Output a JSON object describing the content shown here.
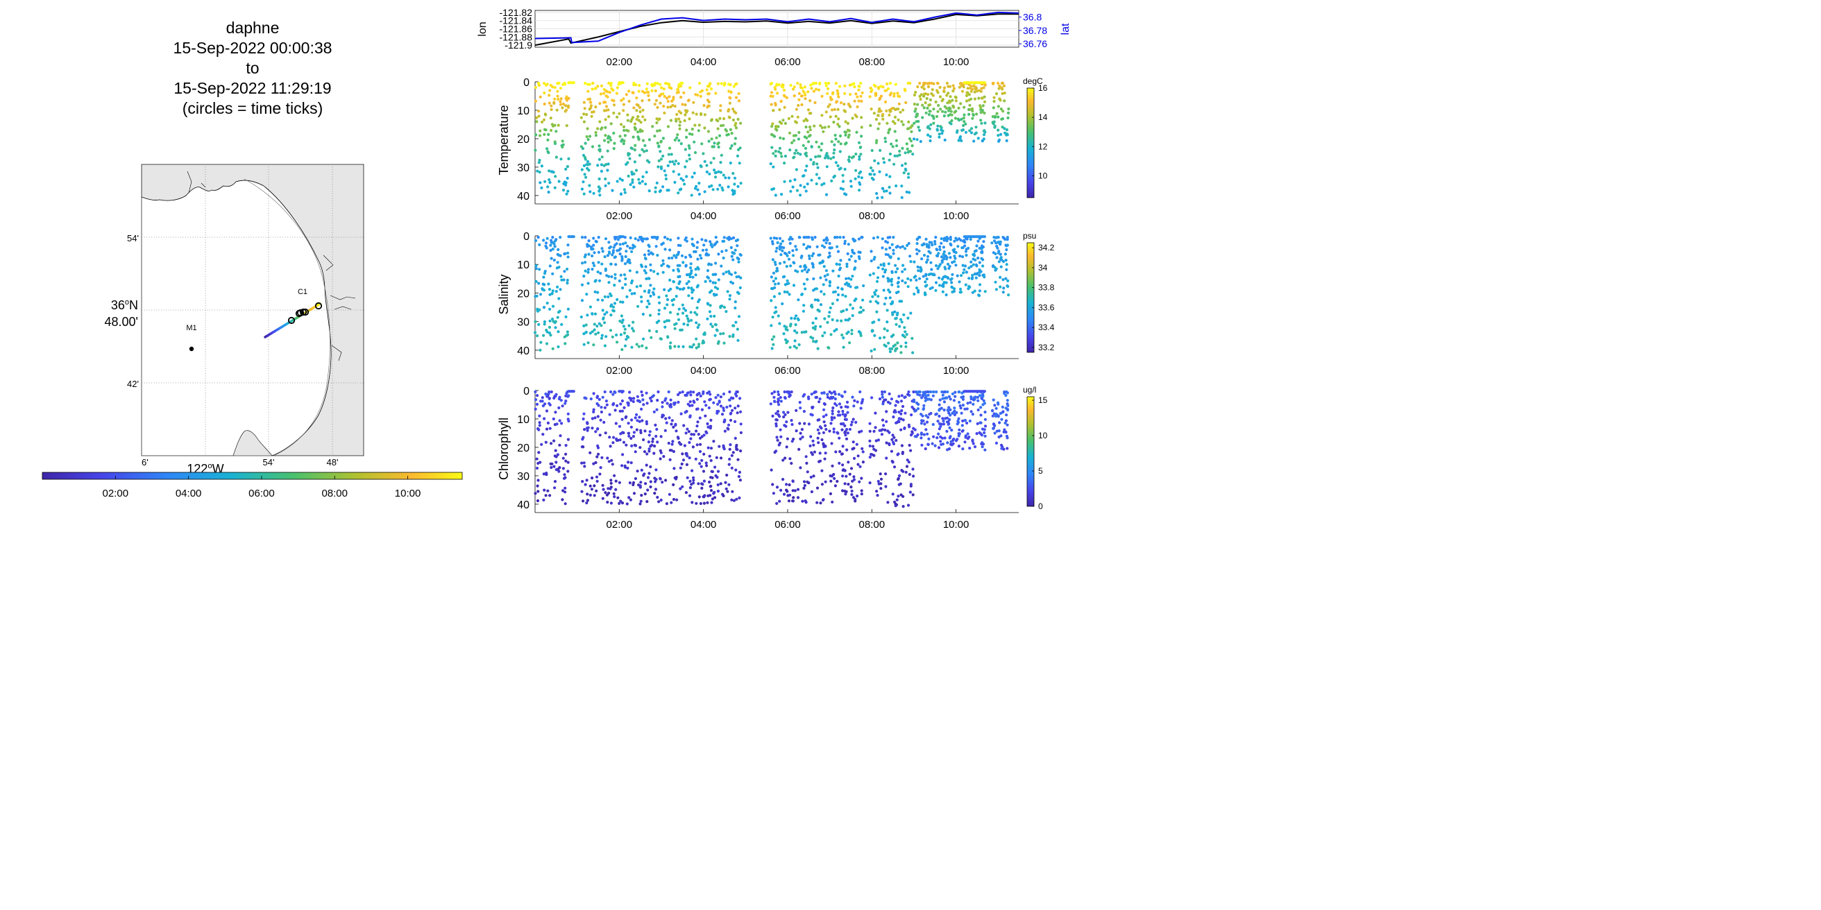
{
  "title": {
    "lines": [
      "daphne",
      "15-Sep-2022 00:00:38",
      "to",
      "15-Sep-2022 11:29:19",
      "(circles = time ticks)"
    ]
  },
  "colors": {
    "lon_series": "#000000",
    "lat_series": "#0000e6",
    "land": "#e6e6e6",
    "colormap": [
      "#3e26a8",
      "#4744e8",
      "#2e87f7",
      "#19b2d3",
      "#4ac16d",
      "#b2c12f",
      "#fbb92f",
      "#f9fb15"
    ]
  },
  "map": {
    "lat_ticks": [
      "54'",
      "36°N 48.00'",
      "42'"
    ],
    "lon_ticks": [
      "6'",
      "122°W",
      "54'",
      "48'"
    ],
    "lon_tick_parts": {
      "deg": "122",
      "sup": "o",
      "hemi": "W"
    },
    "lat_tick_parts": {
      "deg": "36",
      "sup": "o",
      "hemi": "N",
      "min": "48.00'"
    },
    "stations": [
      {
        "name": "M1",
        "lat": 36.747,
        "lon": -122.022
      },
      {
        "name": "C1",
        "lat": 36.797,
        "lon": -121.847
      }
    ],
    "time_colorbar_ticks": [
      "02:00",
      "04:00",
      "06:00",
      "08:00",
      "10:00"
    ]
  },
  "chart_data": [
    {
      "type": "line",
      "title": "",
      "xlabel": "",
      "ylabel": "lon",
      "ylabel_right": "lat",
      "x_ticks": [
        "02:00",
        "04:00",
        "06:00",
        "08:00",
        "10:00"
      ],
      "x_range_hours": [
        0.0,
        11.49
      ],
      "y_ticks_left": [
        -121.82,
        -121.84,
        -121.86,
        -121.88,
        -121.9
      ],
      "y_ticks_right": [
        36.8,
        36.78,
        36.76
      ],
      "ylim_left": [
        -121.905,
        -121.815
      ],
      "ylim_right": [
        36.755,
        36.81
      ],
      "grid": true,
      "series": [
        {
          "name": "lon",
          "axis": "left",
          "x": [
            0.0,
            0.8,
            0.85,
            1.5,
            2.0,
            2.5,
            3.0,
            3.5,
            4.0,
            4.5,
            5.0,
            5.5,
            6.0,
            6.5,
            7.0,
            7.5,
            8.0,
            8.5,
            9.0,
            9.5,
            10.0,
            10.5,
            11.0,
            11.49
          ],
          "values": [
            -121.9,
            -121.885,
            -121.895,
            -121.88,
            -121.867,
            -121.854,
            -121.845,
            -121.84,
            -121.844,
            -121.842,
            -121.843,
            -121.841,
            -121.846,
            -121.842,
            -121.846,
            -121.84,
            -121.847,
            -121.841,
            -121.845,
            -121.836,
            -121.825,
            -121.828,
            -121.824,
            -121.824
          ]
        },
        {
          "name": "lat",
          "axis": "right",
          "x": [
            0.0,
            0.85,
            0.87,
            1.5,
            2.0,
            2.5,
            3.0,
            3.5,
            4.0,
            4.5,
            5.0,
            5.5,
            6.0,
            6.5,
            7.0,
            7.5,
            8.0,
            8.5,
            9.0,
            9.5,
            10.0,
            10.5,
            11.0,
            11.49
          ],
          "values": [
            36.768,
            36.769,
            36.762,
            36.764,
            36.777,
            36.788,
            36.797,
            36.799,
            36.795,
            36.797,
            36.796,
            36.797,
            36.793,
            36.797,
            36.793,
            36.798,
            36.792,
            36.797,
            36.793,
            36.8,
            36.806,
            36.803,
            36.807,
            36.806
          ]
        }
      ]
    },
    {
      "type": "scatter",
      "ylabel": "Temperature",
      "colorbar_label": "degC",
      "colorbar_ticks": [
        16,
        14,
        12,
        10
      ],
      "clim": [
        8.5,
        16.0
      ],
      "ylim": [
        41,
        0
      ],
      "y_ticks": [
        0,
        10,
        20,
        30,
        40
      ],
      "x_ticks": [
        "02:00",
        "04:00",
        "06:00",
        "08:00",
        "10:00"
      ],
      "x_range_hours": [
        0.0,
        11.49
      ],
      "profile_segments": [
        [
          0.0,
          0.8
        ],
        [
          1.1,
          4.9
        ],
        [
          5.6,
          7.8
        ],
        [
          7.95,
          9.0
        ],
        [
          9.0,
          10.7
        ],
        [
          10.85,
          11.25
        ]
      ],
      "gaps": [
        [
          4.9,
          5.6
        ],
        [
          10.7,
          10.85
        ]
      ],
      "color_profile": [
        [
          0,
          16.0
        ],
        [
          10,
          14.3
        ],
        [
          20,
          12.8
        ],
        [
          30,
          11.9
        ],
        [
          40,
          11.6
        ]
      ]
    },
    {
      "type": "scatter",
      "ylabel": "Salinity",
      "colorbar_label": "psu",
      "colorbar_ticks": [
        34.2,
        34,
        33.8,
        33.6,
        33.4,
        33.2
      ],
      "clim": [
        33.15,
        34.25
      ],
      "ylim": [
        41,
        0
      ],
      "y_ticks": [
        0,
        10,
        20,
        30,
        40
      ],
      "x_ticks": [
        "02:00",
        "04:00",
        "06:00",
        "08:00",
        "10:00"
      ],
      "x_range_hours": [
        0.0,
        11.49
      ],
      "color_profile": [
        [
          0,
          33.5
        ],
        [
          20,
          33.6
        ],
        [
          40,
          33.68
        ]
      ]
    },
    {
      "type": "scatter",
      "ylabel": "Chlorophyll",
      "colorbar_label": "ug/l",
      "colorbar_ticks": [
        15,
        10,
        5,
        0
      ],
      "clim": [
        0,
        15.5
      ],
      "ylim": [
        41,
        0
      ],
      "y_ticks": [
        0,
        10,
        20,
        30,
        40
      ],
      "x_ticks": [
        "02:00",
        "04:00",
        "06:00",
        "08:00",
        "10:00"
      ],
      "x_range_hours": [
        0.0,
        11.49
      ],
      "color_profile": [
        [
          0,
          2.5
        ],
        [
          10,
          1.8
        ],
        [
          20,
          1.2
        ],
        [
          40,
          0.6
        ]
      ]
    }
  ]
}
